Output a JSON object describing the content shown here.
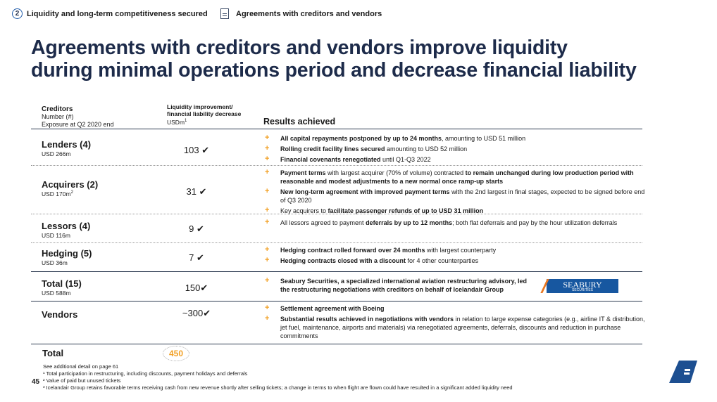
{
  "breadcrumb": {
    "step_number": "2",
    "step_label": "Liquidity and long-term competitiveness secured",
    "page_label": "Agreements with creditors and vendors"
  },
  "title_line1": "Agreements with creditors and vendors improve liquidity",
  "title_line2": "during minimal operations period and decrease financial liability",
  "headers": {
    "creditors": "Creditors",
    "number": "Number (#)",
    "exposure": "Exposure at Q2 2020 end",
    "liq1": "Liquidity improvement/",
    "liq2": "financial liability decrease",
    "unit": "USDm",
    "unit_sup": "1",
    "results": "Results achieved"
  },
  "rows": [
    {
      "name": "Lenders (4)",
      "sub": "USD 266m",
      "sup": "",
      "value": "103 ✔",
      "bullets": [
        [
          {
            "t": "All capital repayments postponed by up to 24 months",
            "b": true
          },
          {
            "t": ", amounting to USD 51 million"
          }
        ],
        [
          {
            "t": "Rolling credit facility lines secured",
            "b": true
          },
          {
            "t": " amounting to USD 52 million"
          }
        ],
        [
          {
            "t": "Financial covenants renegotiated",
            "b": true
          },
          {
            "t": " until Q1-Q3 2022"
          }
        ]
      ]
    },
    {
      "name": "Acquirers (2)",
      "sub": "USD 170m",
      "sup": "2",
      "value": "31 ✔",
      "bullets": [
        [
          {
            "t": "Payment terms",
            "b": true
          },
          {
            "t": " with largest acquirer (70% of volume) contracted "
          },
          {
            "t": "to remain unchanged during low production period with reasonable and modest adjustments to a new normal once ramp-up starts",
            "b": true
          }
        ],
        [
          {
            "t": "New long-term agreement with improved payment terms",
            "b": true
          },
          {
            "t": " with the 2nd largest in final stages, expected to be signed before end of Q3 2020"
          }
        ],
        [
          {
            "t": "Key acquirers to "
          },
          {
            "t": "facilitate passenger refunds of up to USD 31 million",
            "b": true
          }
        ]
      ]
    },
    {
      "name": "Lessors (4)",
      "sub": "USD 116m",
      "sup": "",
      "value": "9 ✔",
      "bullets": [
        [
          {
            "t": "All lessors agreed to payment "
          },
          {
            "t": "deferrals by up to 12 months",
            "b": true
          },
          {
            "t": "; both flat deferrals and pay by the hour utilization deferrals"
          }
        ]
      ]
    },
    {
      "name": "Hedging (5)",
      "sub": "USD 36m",
      "sup": "",
      "value": "7 ✔",
      "bullets": [
        [
          {
            "t": "Hedging contract rolled forward over 24 months",
            "b": true
          },
          {
            "t": " with largest counterparty"
          }
        ],
        [
          {
            "t": "Hedging contracts closed with a discount",
            "b": true
          },
          {
            "t": " for 4 other counterparties"
          }
        ]
      ]
    },
    {
      "name": "Total (15)",
      "sub": "USD 588m",
      "sup": "",
      "value": "150✔",
      "bullets": [
        [
          {
            "t": "Seabury Securities, a specialized international aviation restructuring advisory, led the restructuring negotiations with creditors on behalf of Icelandair Group",
            "b": true
          }
        ]
      ]
    },
    {
      "name": "Vendors",
      "sub": "",
      "sup": "",
      "value": "~300✔",
      "bullets": [
        [
          {
            "t": "Settlement agreement with Boeing",
            "b": true
          }
        ],
        [
          {
            "t": "Substantial results achieved in negotiations with vendors",
            "b": true
          },
          {
            "t": " in relation to large expense categories (e.g., airline IT & distribution, jet fuel, maintenance, airports and materials) via renegotiated agreements, deferrals, discounts and reduction in purchase commitments"
          }
        ]
      ]
    }
  ],
  "seabury_logo": {
    "name": "SEABURY",
    "sub": "SECURITIES"
  },
  "total": {
    "label": "Total",
    "value": "450"
  },
  "footnotes": [
    "See additional detail on page 61",
    "¹ Total participation in restructuring, including discounts, payment holidays and deferrals",
    "² Value of paid but unused tickets",
    "³ Icelandair Group retains favorable terms receiving cash from new revenue shortly after selling tickets; a change in terms to when flight are flown could have resulted in a significant added liquidity need"
  ],
  "page_number": "45",
  "colors": {
    "navy": "#1d2b4a",
    "accent": "#f2a024",
    "seabury_blue": "#1757a0"
  }
}
